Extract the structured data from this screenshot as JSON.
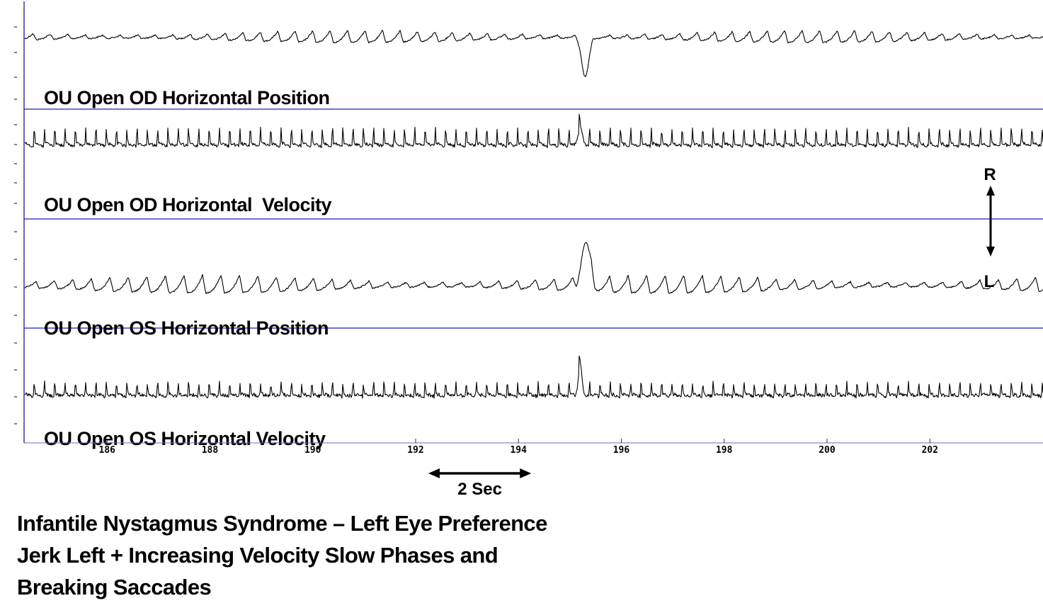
{
  "chart_data": {
    "type": "line",
    "x_unit": "s",
    "xlim": [
      184.4,
      204.2
    ],
    "xticks": [
      186,
      188,
      190,
      192,
      194,
      196,
      198,
      200,
      202
    ],
    "series": [
      {
        "name": "OU Open OD Horizontal Position",
        "kind": "position",
        "jerk_period_s": 0.34,
        "event_time_s": 195.3,
        "event_direction": "down"
      },
      {
        "name": "OU Open OD Horizontal  Velocity",
        "kind": "velocity",
        "jerk_period_s": 0.2,
        "event_time_s": 195.2,
        "event_direction": "up"
      },
      {
        "name": "OU Open OS Horizontal Position",
        "kind": "position",
        "jerk_period_s": 0.36,
        "event_time_s": 195.3,
        "event_direction": "up"
      },
      {
        "name": "OU Open OS Horizontal Velocity",
        "kind": "velocity",
        "jerk_period_s": 0.2,
        "event_time_s": 195.2,
        "event_direction": "up"
      }
    ],
    "direction_marker": {
      "top": "R",
      "bottom": "L"
    },
    "scale_bar": {
      "label": "2 Sec",
      "seconds": 2
    }
  },
  "caption": [
    "Infantile Nystagmus Syndrome – Left Eye Preference",
    "Jerk Left + Increasing Velocity Slow Phases and",
    "Breaking Saccades"
  ],
  "colors": {
    "divider": "#1f1fbf",
    "trace": "#000000"
  }
}
